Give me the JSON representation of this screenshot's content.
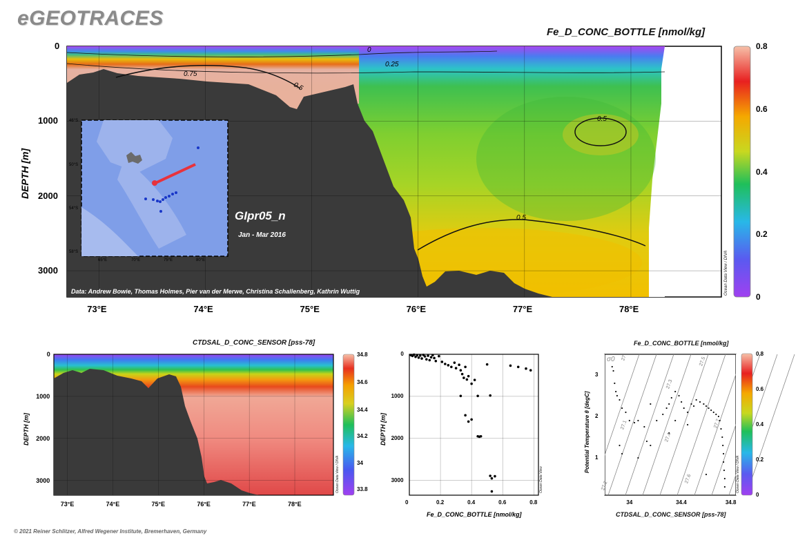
{
  "brand": "eGEOTRACES",
  "footer": "© 2021 Reiner Schlitzer, Alfred Wegener Institute, Bremerhaven, Germany",
  "watermark": "Ocean Data View / DIVA",
  "watermark_short": "Ocean Data View",
  "main": {
    "title": "Fe_D_CONC_BOTTLE [nmol/kg]",
    "ylabel": "DEPTH [m]",
    "cruise": "GIpr05_n",
    "period": "Jan - Mar 2016",
    "credits": "Data: Andrew Bowie, Thomas Holmes, Pier van der Merwe, Christina Schallenberg, Kathrin Wuttig",
    "contour_labels": [
      "0",
      "0.25",
      "0.75",
      "0.5",
      "0.5",
      "0.5"
    ],
    "colorbar_ticks": [
      "0.8",
      "0.6",
      "0.4",
      "0.2",
      "0"
    ]
  },
  "inset_map": {
    "lat_labels": [
      "46°S",
      "50°S",
      "54°S",
      "58°S"
    ],
    "lon_labels": [
      "65°E",
      "70°E",
      "75°E",
      "80°E"
    ],
    "colors": {
      "ocean": "#7f9ee8",
      "shelf": "#b8c6ee",
      "land": "#6b6b6b",
      "track": "#e8323c",
      "stations": "#1836c8"
    }
  },
  "bottom_left": {
    "title": "CTDSAL_D_CONC_SENSOR [pss-78]",
    "ylabel": "DEPTH [m]",
    "colorbar_ticks": [
      "34.8",
      "34.6",
      "34.4",
      "34.2",
      "34",
      "33.8"
    ]
  },
  "bottom_right": {
    "title": "Fe_D_CONC_BOTTLE [nmol/kg]",
    "xlabel": "CTDSAL_D_CONC_SENSOR [pss-78]",
    "ylabel": "Potential Temperature θ [degC]",
    "sigma_label": "σ0",
    "isopycnal_labels": [
      "27",
      "27.3",
      "27.5",
      "27.1",
      "27.4",
      "27.2",
      "27.6",
      "27.7"
    ],
    "colorbar_ticks": [
      "0.8",
      "0.6",
      "0.4",
      "0.2",
      "0"
    ]
  },
  "chart_data": [
    {
      "type": "heatmap",
      "title": "Fe_D_CONC_BOTTLE [nmol/kg]",
      "ylabel": "DEPTH [m]",
      "xticks": [
        "73°E",
        "74°E",
        "75°E",
        "76°E",
        "77°E",
        "78°E"
      ],
      "x": [
        73,
        74,
        75,
        76,
        77,
        78
      ],
      "yticks": [
        "0",
        "1000",
        "2000",
        "3000"
      ],
      "y": [
        0,
        1000,
        2000,
        3000
      ],
      "xlim": [
        72.7,
        78.85
      ],
      "ylim": [
        3350,
        0
      ],
      "colorbar": {
        "min": 0,
        "max": 0.8,
        "ticks": [
          0.8,
          0.6,
          0.4,
          0.2,
          0
        ]
      },
      "contours": [
        0,
        0.25,
        0.5,
        0.75
      ],
      "grid": true
    },
    {
      "type": "heatmap",
      "title": "CTDSAL_D_CONC_SENSOR [pss-78]",
      "ylabel": "DEPTH [m]",
      "xticks": [
        "73°E",
        "74°E",
        "75°E",
        "76°E",
        "77°E",
        "78°E"
      ],
      "x": [
        73,
        74,
        75,
        76,
        77,
        78
      ],
      "yticks": [
        "0",
        "1000",
        "2000",
        "3000"
      ],
      "y": [
        0,
        1000,
        2000,
        3000
      ],
      "xlim": [
        72.7,
        78.85
      ],
      "ylim": [
        3350,
        0
      ],
      "colorbar": {
        "min": 33.75,
        "max": 34.85,
        "ticks": [
          34.8,
          34.6,
          34.4,
          34.2,
          34,
          33.8
        ]
      },
      "grid": true
    },
    {
      "type": "scatter",
      "xlabel": "Fe_D_CONC_BOTTLE [nmol/kg]",
      "ylabel": "DEPTH [m]",
      "xticks": [
        "0",
        "0.2",
        "0.4",
        "0.6",
        "0.8"
      ],
      "xt": [
        0,
        0.2,
        0.4,
        0.6,
        0.8
      ],
      "yticks": [
        "0",
        "1000",
        "2000",
        "3000"
      ],
      "yt": [
        0,
        1000,
        2000,
        3000
      ],
      "xlim": [
        0,
        0.83
      ],
      "ylim": [
        3350,
        0
      ],
      "grid": true,
      "points": [
        [
          0.01,
          20
        ],
        [
          0.02,
          40
        ],
        [
          0.03,
          10
        ],
        [
          0.04,
          60
        ],
        [
          0.05,
          25
        ],
        [
          0.06,
          80
        ],
        [
          0.07,
          30
        ],
        [
          0.08,
          100
        ],
        [
          0.09,
          15
        ],
        [
          0.1,
          50
        ],
        [
          0.11,
          120
        ],
        [
          0.12,
          35
        ],
        [
          0.13,
          140
        ],
        [
          0.14,
          70
        ],
        [
          0.15,
          20
        ],
        [
          0.16,
          90
        ],
        [
          0.17,
          160
        ],
        [
          0.19,
          45
        ],
        [
          0.21,
          180
        ],
        [
          0.23,
          230
        ],
        [
          0.25,
          260
        ],
        [
          0.27,
          300
        ],
        [
          0.29,
          200
        ],
        [
          0.3,
          330
        ],
        [
          0.32,
          250
        ],
        [
          0.33,
          380
        ],
        [
          0.34,
          470
        ],
        [
          0.35,
          560
        ],
        [
          0.36,
          300
        ],
        [
          0.37,
          600
        ],
        [
          0.38,
          520
        ],
        [
          0.4,
          700
        ],
        [
          0.42,
          610
        ],
        [
          0.36,
          1450
        ],
        [
          0.38,
          1600
        ],
        [
          0.4,
          1550
        ],
        [
          0.44,
          1950
        ],
        [
          0.45,
          1960
        ],
        [
          0.46,
          1950
        ],
        [
          0.44,
          990
        ],
        [
          0.52,
          980
        ],
        [
          0.5,
          240
        ],
        [
          0.52,
          2890
        ],
        [
          0.53,
          2950
        ],
        [
          0.55,
          2900
        ],
        [
          0.53,
          3260
        ],
        [
          0.33,
          990
        ],
        [
          0.65,
          270
        ],
        [
          0.7,
          300
        ],
        [
          0.75,
          340
        ],
        [
          0.78,
          380
        ]
      ]
    },
    {
      "type": "scatter",
      "xlabel": "CTDSAL_D_CONC_SENSOR [pss-78]",
      "ylabel": "Potential Temperature θ [degC]",
      "xticks": [
        "34",
        "34.4",
        "34.8"
      ],
      "xt": [
        34,
        34.4,
        34.8
      ],
      "yticks": [
        "1",
        "2",
        "3"
      ],
      "yt": [
        1,
        2,
        3
      ],
      "xlim": [
        33.78,
        34.84
      ],
      "ylim": [
        0.1,
        3.5
      ],
      "colorbar": {
        "min": 0,
        "max": 0.8,
        "ticks": [
          0.8,
          0.6,
          0.4,
          0.2,
          0
        ]
      },
      "points": [
        [
          33.84,
          3.2
        ],
        [
          33.85,
          3.1
        ],
        [
          33.86,
          2.8
        ],
        [
          33.87,
          2.6
        ],
        [
          33.88,
          2.5
        ],
        [
          33.9,
          2.4
        ],
        [
          33.92,
          2.2
        ],
        [
          33.95,
          2.1
        ],
        [
          33.98,
          1.9
        ],
        [
          34.02,
          1.85
        ],
        [
          34.05,
          1.9
        ],
        [
          34.1,
          1.75
        ],
        [
          34.12,
          1.4
        ],
        [
          34.15,
          1.3
        ],
        [
          34.2,
          1.9
        ],
        [
          34.25,
          2.05
        ],
        [
          34.28,
          2.2
        ],
        [
          34.3,
          2.3
        ],
        [
          34.32,
          2.45
        ],
        [
          34.35,
          2.6
        ],
        [
          34.38,
          2.5
        ],
        [
          34.4,
          2.35
        ],
        [
          34.42,
          2.2
        ],
        [
          34.45,
          2.1
        ],
        [
          34.48,
          2.3
        ],
        [
          34.5,
          2.25
        ],
        [
          34.52,
          2.4
        ],
        [
          34.55,
          2.35
        ],
        [
          34.58,
          2.3
        ],
        [
          34.6,
          2.25
        ],
        [
          34.62,
          2.2
        ],
        [
          34.64,
          2.15
        ],
        [
          34.66,
          2.1
        ],
        [
          34.68,
          2.05
        ],
        [
          34.7,
          2.0
        ],
        [
          34.71,
          1.9
        ],
        [
          34.72,
          1.7
        ],
        [
          34.73,
          1.5
        ],
        [
          34.735,
          1.3
        ],
        [
          34.74,
          1.1
        ],
        [
          34.74,
          0.9
        ],
        [
          34.745,
          0.7
        ],
        [
          34.75,
          0.5
        ],
        [
          34.75,
          0.3
        ],
        [
          33.9,
          1.3
        ],
        [
          33.92,
          1.1
        ],
        [
          34.05,
          1.0
        ],
        [
          34.3,
          1.6
        ],
        [
          34.45,
          1.8
        ],
        [
          34.35,
          1.9
        ],
        [
          34.15,
          2.3
        ],
        [
          34.6,
          0.6
        ]
      ]
    }
  ]
}
